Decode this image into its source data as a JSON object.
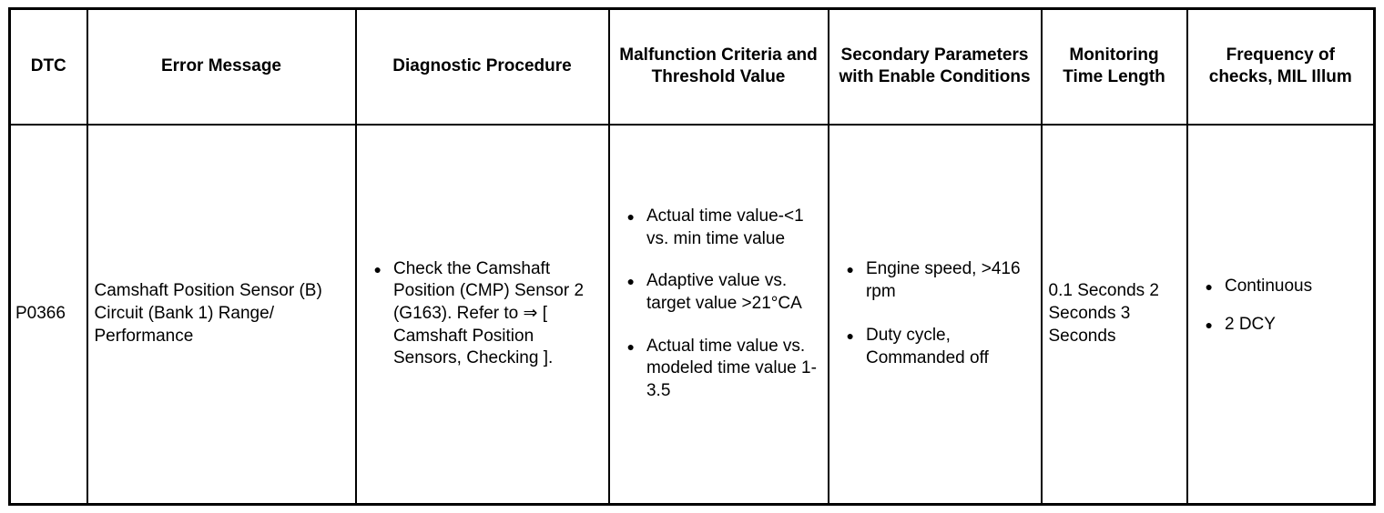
{
  "icons": {
    "bullet": "●"
  },
  "table": {
    "headers": [
      "DTC",
      "Error Message",
      "Diagnostic Procedure",
      "Malfunction Criteria and Threshold Value",
      "Secondary Parameters with Enable Conditions",
      "Monitoring Time Length",
      "Frequency of checks, MIL Illum"
    ],
    "row": {
      "dtc": "P0366",
      "error_message": "Camshaft Position Sensor (B) Circuit (Bank 1) Range/ Performance",
      "diagnostic_procedure": [
        "Check the Camshaft Position (CMP) Sensor 2 (G163). Refer to ⇒ [ Camshaft Position Sensors, Checking ]."
      ],
      "malfunction_criteria": [
        "Actual time value-<1 vs. min time value",
        "Adaptive value vs. target value >21°CA",
        "Actual time value vs. modeled time value 1-3.5"
      ],
      "secondary_parameters": [
        "Engine speed, >416 rpm",
        "Duty cycle, Commanded off"
      ],
      "monitoring_time": "0.1 Seconds 2 Seconds 3 Seconds",
      "frequency": [
        "Continuous",
        "2 DCY"
      ]
    }
  }
}
